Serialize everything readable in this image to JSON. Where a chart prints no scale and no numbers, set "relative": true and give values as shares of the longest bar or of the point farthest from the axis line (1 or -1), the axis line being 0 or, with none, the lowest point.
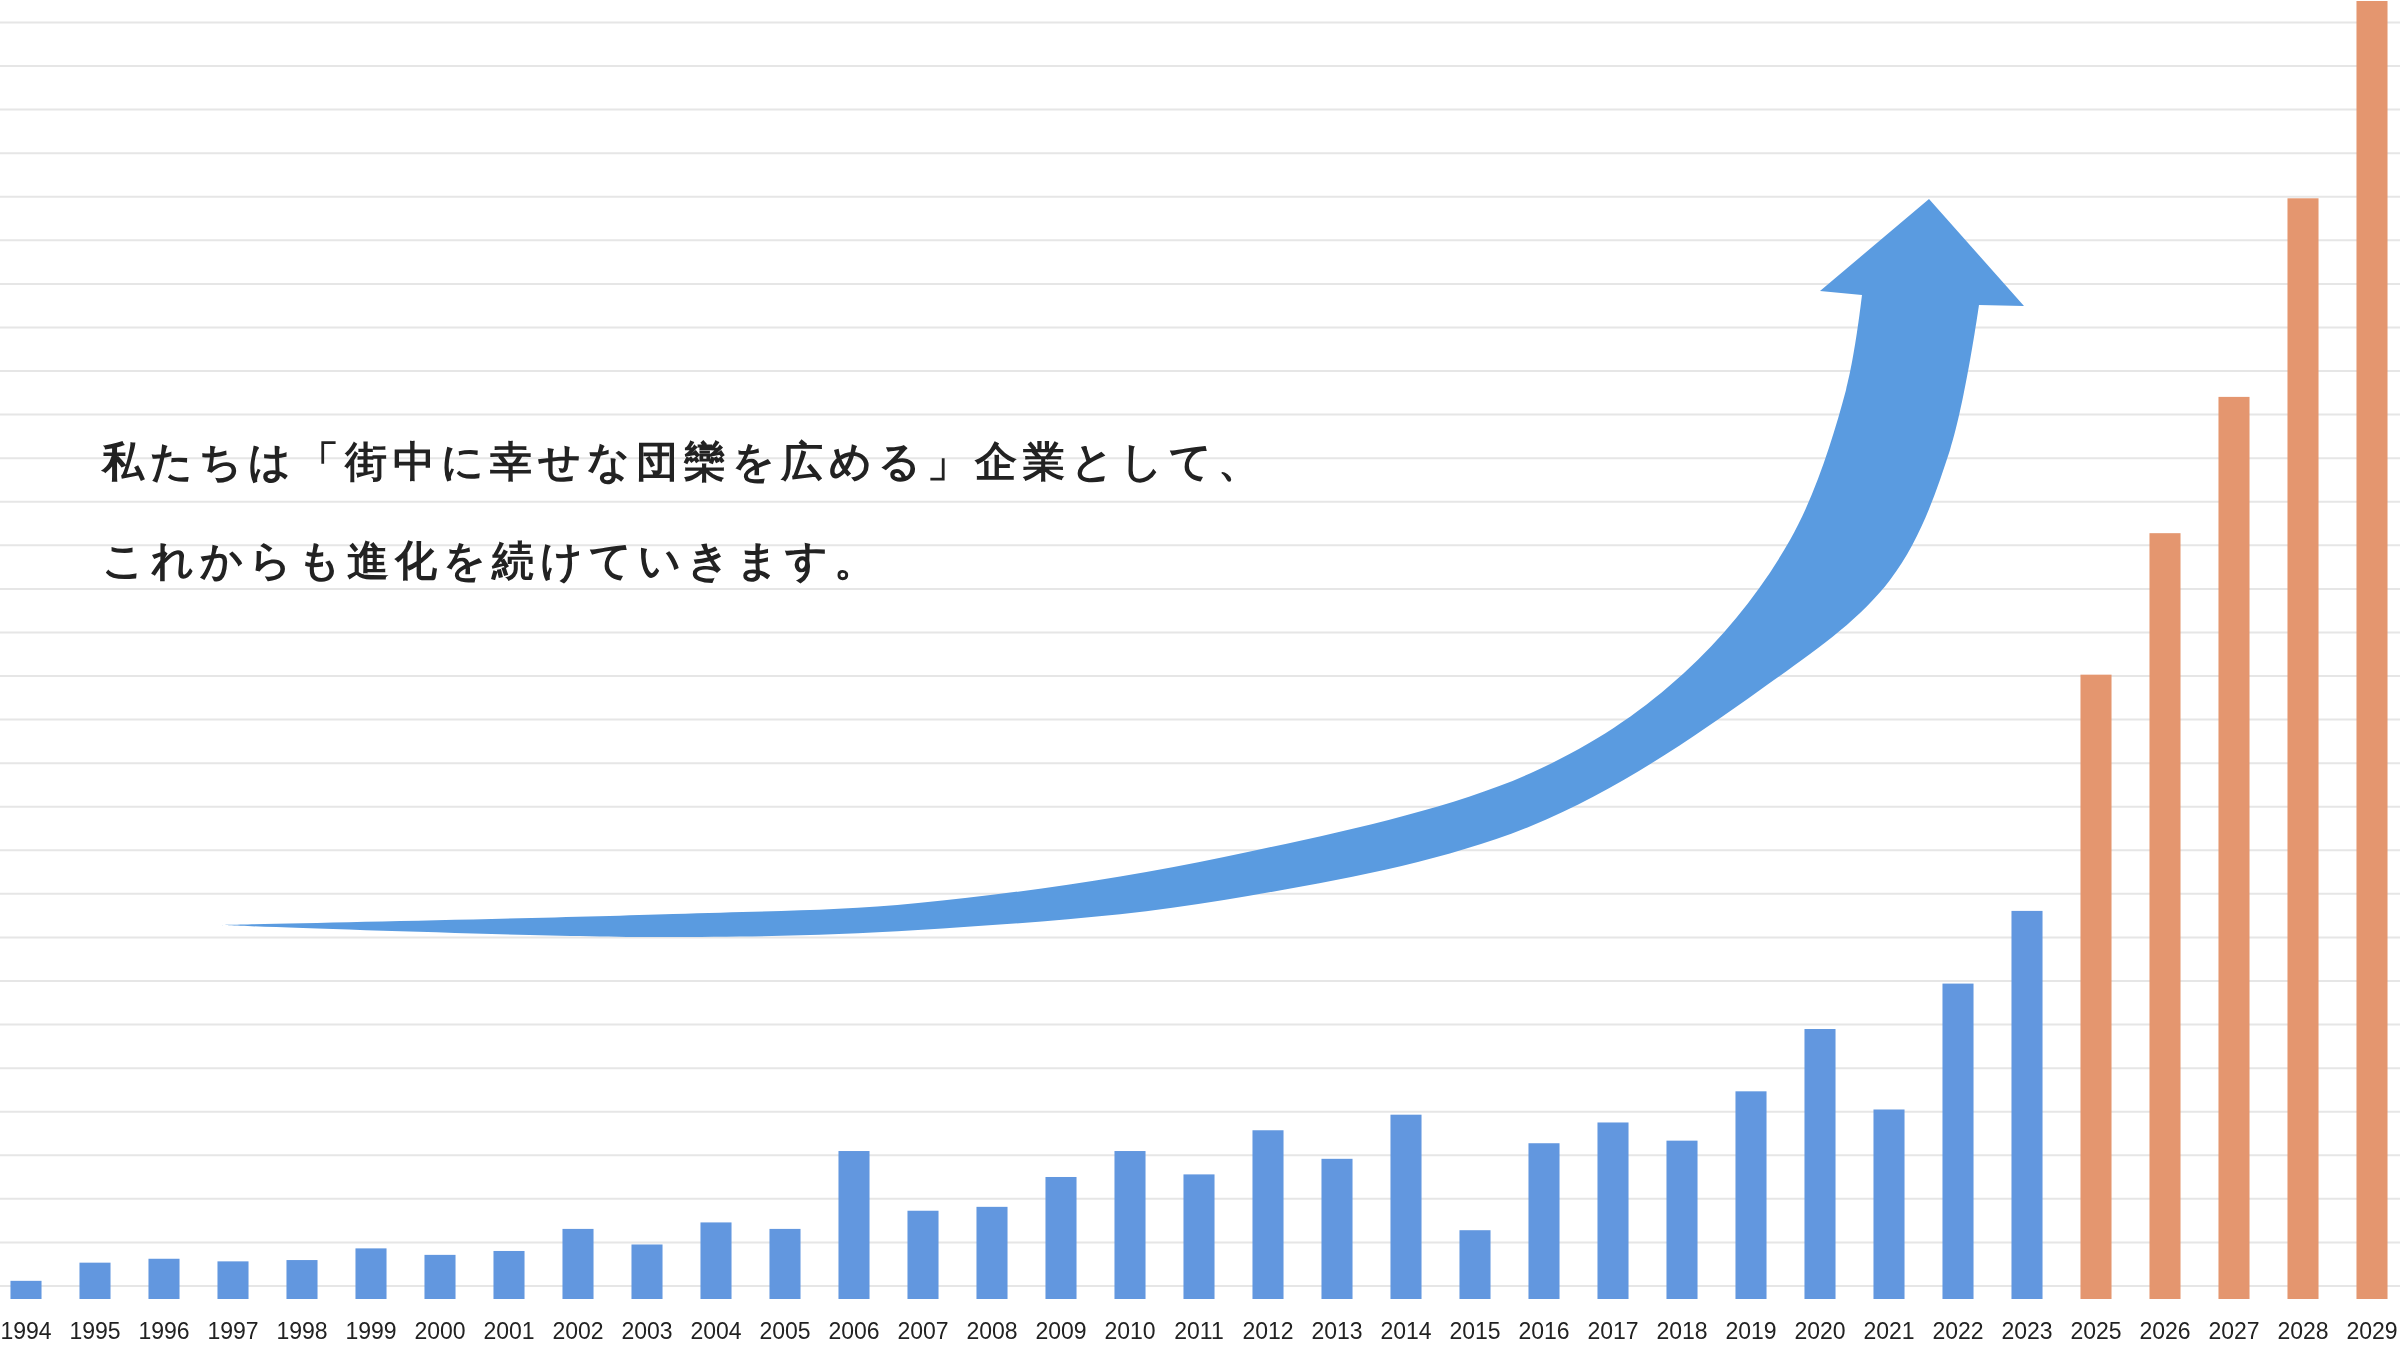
{
  "chart_data": {
    "type": "bar",
    "relative": true,
    "grid": true,
    "categories": [
      "1994",
      "1995",
      "1996",
      "1997",
      "1998",
      "1999",
      "2000",
      "2001",
      "2002",
      "2003",
      "2004",
      "2005",
      "2006",
      "2007",
      "2008",
      "2009",
      "2010",
      "2011",
      "2012",
      "2013",
      "2014",
      "2015",
      "2016",
      "2017",
      "2018",
      "2019",
      "2020",
      "2021",
      "2022",
      "2023",
      "2025",
      "2026",
      "2027",
      "2028",
      "2029"
    ],
    "values": [
      0.014,
      0.028,
      0.031,
      0.029,
      0.03,
      0.039,
      0.034,
      0.037,
      0.054,
      0.042,
      0.059,
      0.054,
      0.114,
      0.068,
      0.071,
      0.094,
      0.114,
      0.096,
      0.13,
      0.108,
      0.142,
      0.053,
      0.12,
      0.136,
      0.122,
      0.16,
      0.208,
      0.146,
      0.243,
      0.299,
      0.481,
      0.59,
      0.695,
      0.848,
      1
    ],
    "colors": [
      "#6297df",
      "#6297df",
      "#6297df",
      "#6297df",
      "#6297df",
      "#6297df",
      "#6297df",
      "#6297df",
      "#6297df",
      "#6297df",
      "#6297df",
      "#6297df",
      "#6297df",
      "#6297df",
      "#6297df",
      "#6297df",
      "#6297df",
      "#6297df",
      "#6297df",
      "#6297df",
      "#6297df",
      "#6297df",
      "#6297df",
      "#6297df",
      "#6297df",
      "#6297df",
      "#6297df",
      "#6297df",
      "#6297df",
      "#6297df",
      "#e4966f",
      "#e4966f",
      "#e4966f",
      "#e4966f",
      "#e4966f"
    ],
    "annotations": [
      "私たちは「街中に幸せな団欒を広める」企業として、",
      "これからも進化を続けていきます。"
    ]
  }
}
